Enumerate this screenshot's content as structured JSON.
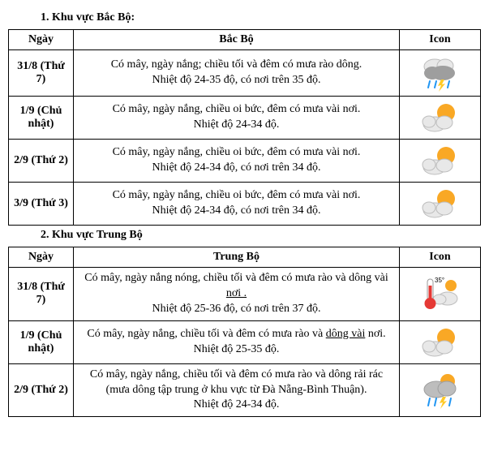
{
  "sections": [
    {
      "title": "1. Khu vực Bắc Bộ:",
      "header_region": "Bắc Bộ",
      "header_ngay": "Ngày",
      "header_icon": "Icon",
      "rows": [
        {
          "ngay": "31/8 (Thứ 7)",
          "line1": "Có mây, ngày nắng; chiều tối và đêm có mưa rào dông.",
          "line2": "Nhiệt độ 24-35 độ, có nơi trên 35 độ.",
          "icon": "rain"
        },
        {
          "ngay": "1/9 (Chủ nhật)",
          "line1": "Có mây, ngày nắng, chiều oi bức, đêm có mưa vài nơi.",
          "line2": "Nhiệt độ 24-34 độ.",
          "icon": "partly"
        },
        {
          "ngay": "2/9 (Thứ 2)",
          "line1": "Có mây, ngày nắng, chiều oi bức, đêm có mưa vài nơi.",
          "line2": "Nhiệt độ 24-34 độ, có nơi trên 34 độ.",
          "icon": "partly"
        },
        {
          "ngay": "3/9 (Thứ 3)",
          "line1": "Có mây, ngày nắng, chiều oi bức, đêm có mưa vài nơi.",
          "line2": "Nhiệt độ 24-34 độ, có nơi trên 34 độ.",
          "icon": "partly"
        }
      ]
    },
    {
      "title": "2. Khu vực Trung Bộ",
      "header_region": "Trung Bộ",
      "header_ngay": "Ngày",
      "header_icon": "Icon",
      "rows": [
        {
          "ngay": "31/8 (Thứ 7)",
          "line1_pre": "Có mây, ngày nắng nóng, chiều tối và đêm có mưa rào và dông vài ",
          "line1_u": "nơi .",
          "line1_post": "",
          "line2": "Nhiệt độ 25-36 độ, có nơi trên 37 độ.",
          "icon": "hot"
        },
        {
          "ngay": "1/9 (Chủ nhật)",
          "line1_pre": "Có mây, ngày nắng, chiều tối và đêm có mưa rào và ",
          "line1_u": "dông  vài",
          "line1_post": " nơi.",
          "line2": "Nhiệt độ 25-35 độ.",
          "icon": "partly"
        },
        {
          "ngay": "2/9 (Thứ 2)",
          "line1": "Có mây, ngày nắng, chiều tối và đêm có mưa rào và dông rải rác (mưa dông tập trung ở khu vực từ Đà Nẵng-Bình Thuận).",
          "line2": "Nhiệt độ 24-34 độ.",
          "icon": "storm"
        }
      ]
    }
  ],
  "icons": {
    "partly": {
      "sun": "#f9a825",
      "cloud": "#e8e8e8",
      "cloud_stroke": "#bdbdbd"
    },
    "rain": {
      "cloud1": "#e8e8e8",
      "cloud2": "#9e9e9e",
      "drop": "#2196f3",
      "bolt": "#ffca28"
    },
    "storm": {
      "sun": "#f9a825",
      "cloud": "#bdbdbd",
      "drop": "#2196f3",
      "bolt": "#ffca28"
    },
    "hot": {
      "thermo": "#e53935",
      "thermo_tube": "#ffffff",
      "cloud": "#e8e8e8",
      "sun": "#f9a825",
      "label": "35°"
    }
  }
}
